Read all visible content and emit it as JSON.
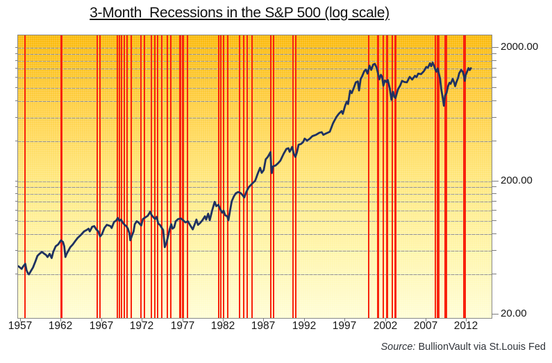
{
  "title": "3-Month  Recessions in the S&P 500 (log scale)",
  "source": {
    "label": "Source:",
    "text": " BullionVault via St.Louis Fed"
  },
  "chart_data": {
    "type": "line",
    "title": "3-Month Recessions in the S&P 500 (log scale)",
    "xlabel": "",
    "ylabel": "",
    "x_axis": {
      "tick_years": [
        1957,
        1962,
        1967,
        1972,
        1977,
        1982,
        1987,
        1992,
        1997,
        2002,
        2007,
        2012
      ]
    },
    "y_axis": {
      "scale": "log",
      "ylim": [
        20,
        2000
      ],
      "tick_labels": [
        {
          "value": 2000,
          "label": "2000.00"
        },
        {
          "value": 200,
          "label": "200.00"
        },
        {
          "value": 20,
          "label": "20.00"
        }
      ],
      "gridline_values": [
        40,
        60,
        80,
        100,
        120,
        140,
        160,
        180,
        200,
        400,
        600,
        800,
        1000,
        1200,
        1400,
        1600,
        1800,
        2000
      ]
    },
    "background": {
      "top": "#fbb90a",
      "bottom": "#fffdd6"
    },
    "recession_lines": {
      "color": "#f8220d",
      "events": [
        {
          "year": 1957.5,
          "width": 2
        },
        {
          "year": 1962.0,
          "width": 3
        },
        {
          "year": 1966.4,
          "width": 2
        },
        {
          "year": 1966.72,
          "width": 2
        },
        {
          "year": 1968.9,
          "width": 2
        },
        {
          "year": 1969.18,
          "width": 2
        },
        {
          "year": 1969.45,
          "width": 2
        },
        {
          "year": 1969.78,
          "width": 2
        },
        {
          "year": 1970.12,
          "width": 2
        },
        {
          "year": 1970.65,
          "width": 2
        },
        {
          "year": 1971.82,
          "width": 2
        },
        {
          "year": 1972.25,
          "width": 2
        },
        {
          "year": 1973.05,
          "width": 2
        },
        {
          "year": 1973.5,
          "width": 2
        },
        {
          "year": 1973.82,
          "width": 2
        },
        {
          "year": 1974.4,
          "width": 2
        },
        {
          "year": 1975.05,
          "width": 2
        },
        {
          "year": 1975.5,
          "width": 2
        },
        {
          "year": 1976.65,
          "width": 3
        },
        {
          "year": 1977.0,
          "width": 3
        },
        {
          "year": 1977.55,
          "width": 2
        },
        {
          "year": 1981.4,
          "width": 2
        },
        {
          "year": 1981.68,
          "width": 2
        },
        {
          "year": 1981.96,
          "width": 2
        },
        {
          "year": 1982.5,
          "width": 2
        },
        {
          "year": 1983.93,
          "width": 2
        },
        {
          "year": 1984.48,
          "width": 2
        },
        {
          "year": 1984.9,
          "width": 2
        },
        {
          "year": 1985.5,
          "width": 2
        },
        {
          "year": 1987.82,
          "width": 2
        },
        {
          "year": 1988.16,
          "width": 2
        },
        {
          "year": 1990.52,
          "width": 2
        },
        {
          "year": 1990.86,
          "width": 2
        },
        {
          "year": 1999.93,
          "width": 2
        },
        {
          "year": 2001.05,
          "width": 3
        },
        {
          "year": 2001.65,
          "width": 2
        },
        {
          "year": 2002.2,
          "width": 3
        },
        {
          "year": 2002.8,
          "width": 2
        },
        {
          "year": 2003.19,
          "width": 3
        },
        {
          "year": 2008.14,
          "width": 2
        },
        {
          "year": 2008.34,
          "width": 2
        },
        {
          "year": 2008.5,
          "width": 2
        },
        {
          "year": 2009.27,
          "width": 2
        },
        {
          "year": 2009.47,
          "width": 2
        },
        {
          "year": 2011.62,
          "width": 2
        },
        {
          "year": 2011.83,
          "width": 2
        }
      ]
    },
    "series": [
      {
        "name": "S&P 500",
        "color": "#1e3161",
        "points": [
          [
            1956.7,
            46
          ],
          [
            1956.9,
            45
          ],
          [
            1957.1,
            44
          ],
          [
            1957.3,
            46
          ],
          [
            1957.55,
            48
          ],
          [
            1957.7,
            43
          ],
          [
            1957.85,
            41
          ],
          [
            1958.0,
            40
          ],
          [
            1958.2,
            42
          ],
          [
            1958.5,
            45
          ],
          [
            1958.8,
            50
          ],
          [
            1959.05,
            55
          ],
          [
            1959.3,
            57
          ],
          [
            1959.6,
            59
          ],
          [
            1959.9,
            57
          ],
          [
            1960.1,
            56
          ],
          [
            1960.3,
            54
          ],
          [
            1960.55,
            57
          ],
          [
            1960.8,
            53
          ],
          [
            1961.0,
            59
          ],
          [
            1961.3,
            65
          ],
          [
            1961.6,
            67
          ],
          [
            1961.95,
            72
          ],
          [
            1962.2,
            70
          ],
          [
            1962.35,
            65
          ],
          [
            1962.5,
            54
          ],
          [
            1962.65,
            57
          ],
          [
            1962.85,
            60
          ],
          [
            1963.1,
            64
          ],
          [
            1963.4,
            67
          ],
          [
            1963.7,
            71
          ],
          [
            1964.0,
            75
          ],
          [
            1964.4,
            79
          ],
          [
            1964.8,
            84
          ],
          [
            1965.1,
            86
          ],
          [
            1965.35,
            88
          ],
          [
            1965.5,
            84
          ],
          [
            1965.8,
            91
          ],
          [
            1966.05,
            92
          ],
          [
            1966.3,
            87
          ],
          [
            1966.55,
            84
          ],
          [
            1966.78,
            77
          ],
          [
            1967.0,
            80
          ],
          [
            1967.3,
            89
          ],
          [
            1967.6,
            94
          ],
          [
            1967.85,
            93
          ],
          [
            1968.05,
            92
          ],
          [
            1968.2,
            89
          ],
          [
            1968.5,
            99
          ],
          [
            1968.75,
            101
          ],
          [
            1968.95,
            106
          ],
          [
            1969.15,
            101
          ],
          [
            1969.35,
            103
          ],
          [
            1969.6,
            97
          ],
          [
            1969.8,
            94
          ],
          [
            1970.0,
            92
          ],
          [
            1970.2,
            88
          ],
          [
            1970.4,
            81
          ],
          [
            1970.5,
            72
          ],
          [
            1970.7,
            78
          ],
          [
            1970.9,
            84
          ],
          [
            1971.05,
            95
          ],
          [
            1971.3,
            100
          ],
          [
            1971.5,
            98
          ],
          [
            1971.7,
            95
          ],
          [
            1971.85,
            93
          ],
          [
            1972.05,
            104
          ],
          [
            1972.35,
            107
          ],
          [
            1972.65,
            110
          ],
          [
            1972.95,
            118
          ],
          [
            1973.1,
            112
          ],
          [
            1973.35,
            107
          ],
          [
            1973.55,
            104
          ],
          [
            1973.75,
            108
          ],
          [
            1973.95,
            96
          ],
          [
            1974.15,
            94
          ],
          [
            1974.35,
            90
          ],
          [
            1974.55,
            86
          ],
          [
            1974.75,
            64
          ],
          [
            1974.95,
            69
          ],
          [
            1975.15,
            77
          ],
          [
            1975.35,
            87
          ],
          [
            1975.55,
            95
          ],
          [
            1975.7,
            88
          ],
          [
            1975.9,
            90
          ],
          [
            1976.1,
            100
          ],
          [
            1976.4,
            104
          ],
          [
            1976.75,
            105
          ],
          [
            1977.0,
            102
          ],
          [
            1977.3,
            98
          ],
          [
            1977.6,
            100
          ],
          [
            1977.9,
            93
          ],
          [
            1978.2,
            87
          ],
          [
            1978.5,
            97
          ],
          [
            1978.65,
            103
          ],
          [
            1978.85,
            94
          ],
          [
            1979.1,
            97
          ],
          [
            1979.4,
            102
          ],
          [
            1979.7,
            109
          ],
          [
            1979.85,
            103
          ],
          [
            1980.1,
            114
          ],
          [
            1980.3,
            102
          ],
          [
            1980.6,
            121
          ],
          [
            1980.9,
            140
          ],
          [
            1981.1,
            130
          ],
          [
            1981.35,
            133
          ],
          [
            1981.6,
            123
          ],
          [
            1981.85,
            116
          ],
          [
            1982.0,
            120
          ],
          [
            1982.2,
            111
          ],
          [
            1982.45,
            109
          ],
          [
            1982.6,
            102
          ],
          [
            1982.8,
            120
          ],
          [
            1983.0,
            141
          ],
          [
            1983.25,
            153
          ],
          [
            1983.5,
            162
          ],
          [
            1983.8,
            166
          ],
          [
            1984.1,
            163
          ],
          [
            1984.35,
            157
          ],
          [
            1984.55,
            151
          ],
          [
            1984.8,
            166
          ],
          [
            1985.1,
            180
          ],
          [
            1985.5,
            191
          ],
          [
            1985.9,
            202
          ],
          [
            1986.2,
            227
          ],
          [
            1986.5,
            252
          ],
          [
            1986.7,
            231
          ],
          [
            1986.95,
            242
          ],
          [
            1987.2,
            292
          ],
          [
            1987.45,
            304
          ],
          [
            1987.65,
            319
          ],
          [
            1987.78,
            330
          ],
          [
            1987.87,
            252
          ],
          [
            1987.95,
            230
          ],
          [
            1988.1,
            258
          ],
          [
            1988.4,
            262
          ],
          [
            1988.7,
            272
          ],
          [
            1989.0,
            285
          ],
          [
            1989.4,
            320
          ],
          [
            1989.75,
            349
          ],
          [
            1990.0,
            353
          ],
          [
            1990.15,
            332
          ],
          [
            1990.45,
            361
          ],
          [
            1990.65,
            322
          ],
          [
            1990.85,
            304
          ],
          [
            1991.05,
            330
          ],
          [
            1991.25,
            375
          ],
          [
            1991.55,
            380
          ],
          [
            1991.8,
            392
          ],
          [
            1992.0,
            417
          ],
          [
            1992.3,
            403
          ],
          [
            1992.6,
            415
          ],
          [
            1992.95,
            435
          ],
          [
            1993.4,
            445
          ],
          [
            1993.8,
            461
          ],
          [
            1994.1,
            466
          ],
          [
            1994.3,
            445
          ],
          [
            1994.6,
            455
          ],
          [
            1994.85,
            462
          ],
          [
            1995.1,
            470
          ],
          [
            1995.5,
            544
          ],
          [
            1995.9,
            605
          ],
          [
            1996.2,
            640
          ],
          [
            1996.55,
            670
          ],
          [
            1996.7,
            640
          ],
          [
            1997.0,
            740
          ],
          [
            1997.2,
            790
          ],
          [
            1997.35,
            757
          ],
          [
            1997.6,
            954
          ],
          [
            1997.8,
            914
          ],
          [
            1998.0,
            980
          ],
          [
            1998.3,
            1101
          ],
          [
            1998.55,
            1120
          ],
          [
            1998.7,
            957
          ],
          [
            1998.9,
            1163
          ],
          [
            1999.1,
            1229
          ],
          [
            1999.35,
            1335
          ],
          [
            1999.55,
            1372
          ],
          [
            1999.75,
            1282
          ],
          [
            2000.0,
            1469
          ],
          [
            2000.2,
            1366
          ],
          [
            2000.45,
            1498
          ],
          [
            2000.65,
            1517
          ],
          [
            2000.85,
            1429
          ],
          [
            2001.0,
            1320
          ],
          [
            2001.2,
            1160
          ],
          [
            2001.4,
            1255
          ],
          [
            2001.55,
            1211
          ],
          [
            2001.7,
            1040
          ],
          [
            2001.9,
            1139
          ],
          [
            2002.1,
            1106
          ],
          [
            2002.25,
            1147
          ],
          [
            2002.5,
            990
          ],
          [
            2002.7,
            815
          ],
          [
            2002.8,
            885
          ],
          [
            2002.9,
            936
          ],
          [
            2003.05,
            855
          ],
          [
            2003.2,
            841
          ],
          [
            2003.5,
            975
          ],
          [
            2003.8,
            1050
          ],
          [
            2004.0,
            1131
          ],
          [
            2004.3,
            1107
          ],
          [
            2004.6,
            1101
          ],
          [
            2004.95,
            1212
          ],
          [
            2005.25,
            1157
          ],
          [
            2005.6,
            1234
          ],
          [
            2005.8,
            1207
          ],
          [
            2006.0,
            1280
          ],
          [
            2006.35,
            1270
          ],
          [
            2006.7,
            1336
          ],
          [
            2007.0,
            1438
          ],
          [
            2007.2,
            1421
          ],
          [
            2007.45,
            1530
          ],
          [
            2007.6,
            1455
          ],
          [
            2007.78,
            1549
          ],
          [
            2007.95,
            1468
          ],
          [
            2008.1,
            1379
          ],
          [
            2008.25,
            1323
          ],
          [
            2008.4,
            1400
          ],
          [
            2008.55,
            1280
          ],
          [
            2008.7,
            1166
          ],
          [
            2008.85,
            969
          ],
          [
            2008.95,
            896
          ],
          [
            2009.05,
            826
          ],
          [
            2009.17,
            735
          ],
          [
            2009.3,
            873
          ],
          [
            2009.5,
            919
          ],
          [
            2009.65,
            1020
          ],
          [
            2009.85,
            1095
          ],
          [
            2010.0,
            1074
          ],
          [
            2010.25,
            1169
          ],
          [
            2010.45,
            1089
          ],
          [
            2010.55,
            1031
          ],
          [
            2010.7,
            1101
          ],
          [
            2010.9,
            1183
          ],
          [
            2011.05,
            1286
          ],
          [
            2011.3,
            1364
          ],
          [
            2011.5,
            1321
          ],
          [
            2011.65,
            1219
          ],
          [
            2011.75,
            1131
          ],
          [
            2011.85,
            1247
          ],
          [
            2012.0,
            1312
          ],
          [
            2012.2,
            1408
          ],
          [
            2012.35,
            1362
          ],
          [
            2012.5,
            1406
          ]
        ]
      }
    ],
    "source": "Source: BullionVault via St.Louis Fed"
  }
}
